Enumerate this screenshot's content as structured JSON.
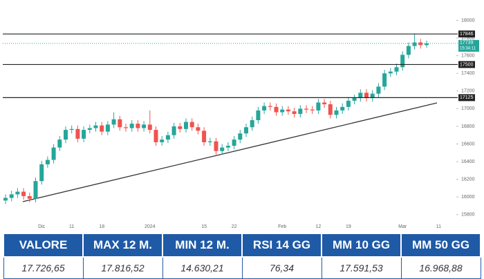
{
  "chart_data": {
    "type": "candlestick",
    "categories": [
      null,
      null,
      null,
      null,
      null,
      null,
      "Dic",
      null,
      null,
      null,
      null,
      "11",
      null,
      null,
      null,
      null,
      "18",
      null,
      null,
      null,
      null,
      null,
      null,
      null,
      "2024",
      null,
      null,
      null,
      null,
      null,
      null,
      null,
      null,
      "15",
      null,
      null,
      null,
      null,
      "22",
      null,
      null,
      null,
      null,
      null,
      null,
      null,
      "Feb",
      null,
      null,
      null,
      null,
      null,
      "12",
      null,
      null,
      null,
      null,
      "19",
      null,
      null,
      null,
      null,
      null,
      null,
      null,
      null,
      "Mar",
      null,
      null,
      null,
      null,
      null,
      "11"
    ],
    "open": [
      15960,
      15990,
      16030,
      16060,
      16010,
      15980,
      16180,
      16370,
      16420,
      16560,
      16650,
      16760,
      16770,
      16660,
      16760,
      16780,
      16810,
      16740,
      16820,
      16880,
      16790,
      16780,
      16830,
      16780,
      16820,
      16760,
      16620,
      16650,
      16700,
      16800,
      16770,
      16850,
      16790,
      16750,
      16620,
      16630,
      16520,
      16560,
      16580,
      16650,
      16720,
      16790,
      16870,
      16980,
      17030,
      17020,
      16960,
      16990,
      16970,
      16940,
      17000,
      16990,
      16980,
      17070,
      17050,
      16930,
      16980,
      17020,
      17090,
      17120,
      17180,
      17120,
      17170,
      17250,
      17400,
      17420,
      17470,
      17610,
      17710,
      17750,
      17720,
      null,
      null
    ],
    "high": [
      16030,
      16070,
      16100,
      16100,
      16050,
      16220,
      16410,
      16460,
      16600,
      16690,
      16800,
      16810,
      16810,
      16800,
      16820,
      16850,
      16850,
      16860,
      16960,
      16920,
      16830,
      16870,
      16870,
      16860,
      16980,
      16800,
      16690,
      16740,
      16840,
      16840,
      16890,
      16890,
      16830,
      16790,
      16670,
      16670,
      16600,
      16620,
      16690,
      16760,
      16830,
      16910,
      17020,
      17070,
      17070,
      17060,
      17030,
      17030,
      17010,
      17040,
      17040,
      17030,
      17110,
      17110,
      17090,
      17020,
      17060,
      17130,
      17160,
      17220,
      17220,
      17210,
      17290,
      17440,
      17460,
      17510,
      17650,
      17750,
      17850,
      17790,
      17770,
      null,
      null
    ],
    "low": [
      15920,
      15950,
      15990,
      15970,
      15940,
      15940,
      16140,
      16330,
      16380,
      16520,
      16610,
      16720,
      16620,
      16620,
      16720,
      16740,
      16700,
      16700,
      16780,
      16750,
      16740,
      16740,
      16740,
      16740,
      16720,
      16580,
      16580,
      16610,
      16660,
      16730,
      16730,
      16750,
      16710,
      16580,
      16580,
      16480,
      16480,
      16520,
      16540,
      16610,
      16680,
      16750,
      16830,
      16940,
      16980,
      16920,
      16920,
      16930,
      16900,
      16900,
      16950,
      16940,
      16940,
      17010,
      16890,
      16890,
      16940,
      16980,
      17050,
      17080,
      17080,
      17080,
      17130,
      17210,
      17360,
      17380,
      17430,
      17570,
      17670,
      17680,
      17690,
      null,
      null
    ],
    "close": [
      15990,
      16030,
      16060,
      16010,
      15980,
      16180,
      16370,
      16420,
      16560,
      16650,
      16760,
      16770,
      16660,
      16760,
      16780,
      16810,
      16740,
      16820,
      16880,
      16790,
      16780,
      16830,
      16780,
      16820,
      16760,
      16620,
      16650,
      16700,
      16800,
      16770,
      16850,
      16790,
      16750,
      16620,
      16630,
      16520,
      16560,
      16580,
      16650,
      16720,
      16790,
      16870,
      16980,
      17030,
      17020,
      16960,
      16990,
      16970,
      16940,
      17000,
      16990,
      16980,
      17070,
      17050,
      16930,
      16980,
      17020,
      17090,
      17120,
      17180,
      17120,
      17170,
      17250,
      17400,
      17420,
      17470,
      17610,
      17710,
      17750,
      17720,
      17739,
      null,
      null
    ],
    "up_color": "#26a69a",
    "down_color": "#ef5350",
    "ylim": [
      15650,
      18090
    ],
    "yticks": [
      15800,
      16000,
      16200,
      16400,
      16600,
      16800,
      17000,
      17200,
      17400,
      17600,
      17800,
      18000
    ],
    "levels": [
      17846,
      17500,
      17125
    ],
    "last_price": 17739,
    "countdown": "15:34:11"
  },
  "table": {
    "header": [
      "VALORE",
      "MAX 12 M.",
      "MIN 12 M.",
      "RSI 14 GG",
      "MM 10 GG",
      "MM 50 GG"
    ],
    "row": [
      "17.726,65",
      "17.816,52",
      "14.630,21",
      "76,34",
      "17.591,53",
      "16.968,88"
    ]
  }
}
